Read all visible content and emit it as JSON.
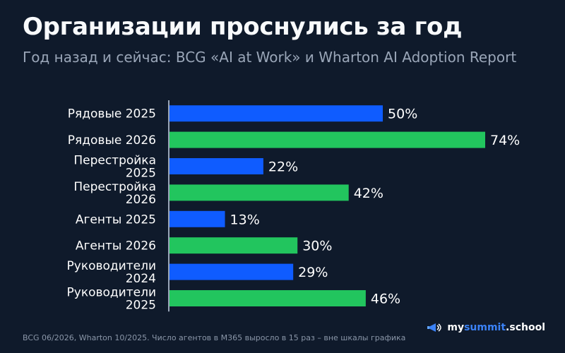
{
  "title": "Организации проснулись за год",
  "subtitle": "Год назад и сейчас: BCG «AI at Work» и Wharton AI Adoption Report",
  "footer": "BCG 06/2026, Wharton 10/2025. Число агентов в M365 выросло в 15 раз – вне шкалы графика",
  "brand": {
    "part1": "my",
    "part2": "summit",
    "part3": ".school"
  },
  "colors": {
    "background": "#0f1a2b",
    "blue": "#0f5cff",
    "green": "#22c55e",
    "axis": "#9aa6b8"
  },
  "chart_data": {
    "type": "bar",
    "orientation": "horizontal",
    "categories": [
      [
        "Рядовые 2025"
      ],
      [
        "Рядовые 2026"
      ],
      [
        "Перестройка",
        "2025"
      ],
      [
        "Перестройка",
        "2026"
      ],
      [
        "Агенты 2025"
      ],
      [
        "Агенты 2026"
      ],
      [
        "Руководители",
        "2024"
      ],
      [
        "Руководители",
        "2025"
      ]
    ],
    "values": [
      50,
      74,
      22,
      42,
      13,
      30,
      29,
      46
    ],
    "value_labels": [
      "50%",
      "74%",
      "22%",
      "42%",
      "13%",
      "30%",
      "29%",
      "46%"
    ],
    "bar_colors": [
      "blue",
      "green",
      "blue",
      "green",
      "blue",
      "green",
      "blue",
      "green"
    ],
    "xlim": [
      0,
      74
    ]
  }
}
